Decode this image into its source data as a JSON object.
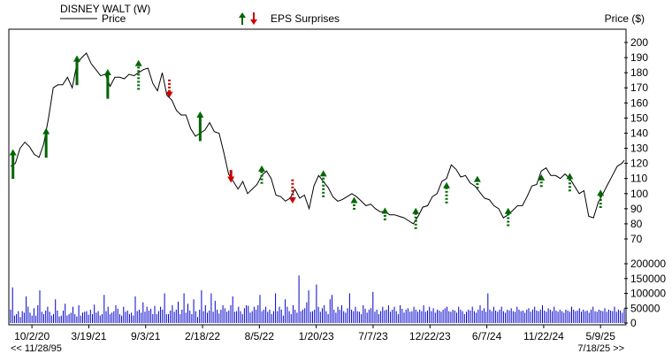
{
  "legend": {
    "title": "DISNEY WALT (W)",
    "price_label": "Price",
    "eps_label": "EPS Surprises",
    "price_axis_label": "Price ($)"
  },
  "colors": {
    "price_line": "#000000",
    "volume": "#0000cc",
    "surprise_up": "#006600",
    "surprise_down": "#cc0000"
  },
  "chart_data": [
    {
      "type": "line",
      "name": "price",
      "x": [
        "2020-07-31",
        "2020-08-14",
        "2020-08-28",
        "2020-09-11",
        "2020-09-25",
        "2020-10-09",
        "2020-10-23",
        "2020-11-06",
        "2020-11-20",
        "2020-12-04",
        "2020-12-18",
        "2021-01-01",
        "2021-01-15",
        "2021-01-29",
        "2021-02-12",
        "2021-02-26",
        "2021-03-12",
        "2021-03-26",
        "2021-04-09",
        "2021-04-23",
        "2021-05-07",
        "2021-05-21",
        "2021-06-04",
        "2021-06-18",
        "2021-07-02",
        "2021-07-16",
        "2021-07-30",
        "2021-08-13",
        "2021-08-27",
        "2021-09-10",
        "2021-09-24",
        "2021-10-08",
        "2021-10-22",
        "2021-11-05",
        "2021-11-19",
        "2021-12-03",
        "2021-12-17",
        "2021-12-31",
        "2022-01-14",
        "2022-01-28",
        "2022-02-11",
        "2022-02-25",
        "2022-03-11",
        "2022-03-25",
        "2022-04-08",
        "2022-04-22",
        "2022-05-06",
        "2022-05-20",
        "2022-06-03",
        "2022-06-17",
        "2022-07-01",
        "2022-07-15",
        "2022-07-29",
        "2022-08-12",
        "2022-08-26",
        "2022-09-09",
        "2022-09-23",
        "2022-10-07",
        "2022-10-21",
        "2022-11-04",
        "2022-11-18",
        "2022-12-02",
        "2022-12-16",
        "2022-12-30",
        "2023-01-13",
        "2023-01-27",
        "2023-02-10",
        "2023-02-24",
        "2023-03-10",
        "2023-03-24",
        "2023-04-07",
        "2023-04-21",
        "2023-05-05",
        "2023-05-19",
        "2023-06-02",
        "2023-06-16",
        "2023-06-30",
        "2023-07-14",
        "2023-07-28",
        "2023-08-11",
        "2023-08-25",
        "2023-09-08",
        "2023-09-22",
        "2023-10-06",
        "2023-10-20",
        "2023-11-03",
        "2023-11-17",
        "2023-12-01",
        "2023-12-15",
        "2023-12-29",
        "2024-01-12",
        "2024-01-26",
        "2024-02-09",
        "2024-02-23",
        "2024-03-08",
        "2024-03-22",
        "2024-04-05",
        "2024-04-19",
        "2024-05-03",
        "2024-05-17",
        "2024-05-31",
        "2024-06-14",
        "2024-06-28",
        "2024-07-12",
        "2024-07-26",
        "2024-08-09",
        "2024-08-23",
        "2024-09-06",
        "2024-09-20",
        "2024-10-04",
        "2024-10-18",
        "2024-11-01",
        "2024-11-15",
        "2024-11-29",
        "2024-12-13",
        "2024-12-27",
        "2025-01-10",
        "2025-01-24",
        "2025-02-07",
        "2025-02-21",
        "2025-03-07",
        "2025-03-21",
        "2025-04-04",
        "2025-04-18",
        "2025-05-02",
        "2025-05-16",
        "2025-05-30",
        "2025-06-13",
        "2025-06-27",
        "2025-07-11",
        "2025-07-18"
      ],
      "y": [
        118,
        120,
        130,
        134,
        131,
        126,
        124,
        133,
        150,
        170,
        172,
        172,
        177,
        170,
        186,
        190,
        193,
        186,
        182,
        178,
        179,
        171,
        177,
        177,
        176,
        179,
        178,
        180,
        182,
        183,
        173,
        168,
        180,
        165,
        162,
        155,
        152,
        152,
        143,
        138,
        140,
        142,
        147,
        141,
        140,
        127,
        113,
        108,
        103,
        108,
        100,
        103,
        106,
        112,
        115,
        110,
        99,
        98,
        95,
        97,
        103,
        97,
        99,
        90,
        105,
        112,
        108,
        104,
        98,
        95,
        96,
        98,
        100,
        98,
        95,
        92,
        93,
        90,
        88,
        88,
        86,
        86,
        85,
        84,
        82,
        80,
        85,
        91,
        92,
        98,
        100,
        108,
        110,
        119,
        116,
        111,
        112,
        107,
        105,
        101,
        97,
        96,
        92,
        90,
        84,
        86,
        89,
        92,
        92,
        98,
        105,
        106,
        115,
        117,
        112,
        112,
        110,
        113,
        110,
        105,
        100,
        102,
        85,
        84,
        94,
        100,
        106,
        112,
        118,
        120,
        122
      ],
      "ylabel": "Price ($)",
      "ylim": [
        65,
        205
      ],
      "yticks": [
        70,
        80,
        90,
        100,
        110,
        120,
        130,
        140,
        150,
        160,
        170,
        180,
        190,
        200
      ],
      "xtick_labels": [
        "10/2/20",
        "3/19/21",
        "9/3/21",
        "2/18/22",
        "8/5/22",
        "1/20/23",
        "7/7/23",
        "12/22/23",
        "6/7/24",
        "11/22/24",
        "5/9/25"
      ],
      "xtick_dates": [
        "2020-10-02",
        "2021-03-19",
        "2021-09-03",
        "2022-02-18",
        "2022-08-05",
        "2023-01-20",
        "2023-07-07",
        "2023-12-22",
        "2024-06-07",
        "2024-11-22",
        "2025-05-09"
      ],
      "range_start": "<< 11/28/95",
      "range_end": "7/18/25 >>"
    },
    {
      "type": "scatter",
      "name": "eps_surprises",
      "points": [
        {
          "date": "2020-08-07",
          "price": 119,
          "magnitude": 16,
          "direction": "up",
          "style": "solid"
        },
        {
          "date": "2020-11-13",
          "price": 133,
          "magnitude": 16,
          "direction": "up",
          "style": "solid"
        },
        {
          "date": "2021-02-12",
          "price": 181,
          "magnitude": 16,
          "direction": "up",
          "style": "solid"
        },
        {
          "date": "2021-05-14",
          "price": 172,
          "magnitude": 16,
          "direction": "up",
          "style": "solid"
        },
        {
          "date": "2021-08-13",
          "price": 178,
          "magnitude": 16,
          "direction": "up",
          "style": "dashed"
        },
        {
          "date": "2021-11-12",
          "price": 170,
          "magnitude": 8,
          "direction": "down",
          "style": "dashed"
        },
        {
          "date": "2022-02-11",
          "price": 144,
          "magnitude": 16,
          "direction": "up",
          "style": "solid"
        },
        {
          "date": "2022-05-13",
          "price": 112,
          "magnitude": 4,
          "direction": "down",
          "style": "solid"
        },
        {
          "date": "2022-08-12",
          "price": 112,
          "magnitude": 8,
          "direction": "up",
          "style": "dashed"
        },
        {
          "date": "2022-11-11",
          "price": 102,
          "magnitude": 12,
          "direction": "down",
          "style": "dashed"
        },
        {
          "date": "2023-02-10",
          "price": 106,
          "magnitude": 14,
          "direction": "up",
          "style": "dashed"
        },
        {
          "date": "2023-05-12",
          "price": 93,
          "magnitude": 4,
          "direction": "up",
          "style": "dashed"
        },
        {
          "date": "2023-08-11",
          "price": 86,
          "magnitude": 4,
          "direction": "up",
          "style": "dashed"
        },
        {
          "date": "2023-11-10",
          "price": 83,
          "magnitude": 10,
          "direction": "up",
          "style": "dashed"
        },
        {
          "date": "2024-02-09",
          "price": 100,
          "magnitude": 10,
          "direction": "up",
          "style": "dashed"
        },
        {
          "date": "2024-05-10",
          "price": 107,
          "magnitude": 4,
          "direction": "up",
          "style": "dashed"
        },
        {
          "date": "2024-08-09",
          "price": 84,
          "magnitude": 8,
          "direction": "up",
          "style": "dashed"
        },
        {
          "date": "2024-11-15",
          "price": 108,
          "magnitude": 4,
          "direction": "up",
          "style": "dashed"
        },
        {
          "date": "2025-02-07",
          "price": 107,
          "magnitude": 8,
          "direction": "up",
          "style": "dashed"
        },
        {
          "date": "2025-05-09",
          "price": 96,
          "magnitude": 8,
          "direction": "up",
          "style": "dashed"
        }
      ]
    },
    {
      "type": "bar",
      "name": "volume",
      "ylim": [
        0,
        200000
      ],
      "yticks": [
        0,
        50000,
        100000,
        150000,
        200000
      ],
      "values": [
        45000,
        120000,
        25000,
        30000,
        40000,
        20000,
        40000,
        35000,
        90000,
        55000,
        35000,
        25000,
        50000,
        25000,
        60000,
        110000,
        38000,
        30000,
        42000,
        55000,
        38000,
        25000,
        30000,
        80000,
        42000,
        22000,
        25000,
        42000,
        65000,
        25000,
        30000,
        35000,
        55000,
        30000,
        22000,
        60000,
        25000,
        35000,
        38000,
        40000,
        28000,
        45000,
        30000,
        62000,
        35000,
        40000,
        25000,
        30000,
        95000,
        40000,
        55000,
        30000,
        35000,
        40000,
        60000,
        48000,
        30000,
        25000,
        55000,
        38000,
        42000,
        30000,
        35000,
        25000,
        90000,
        40000,
        45000,
        35000,
        70000,
        38000,
        55000,
        42000,
        48000,
        30000,
        58000,
        30000,
        40000,
        55000,
        45000,
        100000,
        30000,
        30000,
        42000,
        60000,
        38000,
        45000,
        72000,
        30000,
        45000,
        100000,
        35000,
        65000,
        42000,
        30000,
        80000,
        40000,
        20000,
        45000,
        110000,
        40000,
        60000,
        35000,
        42000,
        100000,
        38000,
        75000,
        45000,
        32000,
        45000,
        60000,
        50000,
        38000,
        42000,
        60000,
        90000,
        38000,
        40000,
        55000,
        40000,
        30000,
        50000,
        60000,
        58000,
        35000,
        40000,
        55000,
        45000,
        60000,
        95000,
        40000,
        45000,
        55000,
        38000,
        45000,
        30000,
        40000,
        100000,
        40000,
        55000,
        45000,
        25000,
        80000,
        55000,
        40000,
        30000,
        60000,
        45000,
        35000,
        160000,
        40000,
        45000,
        50000,
        70000,
        110000,
        38000,
        40000,
        45000,
        130000,
        55000,
        38000,
        50000,
        60000,
        40000,
        30000,
        80000,
        95000,
        45000,
        35000,
        55000,
        45000,
        60000,
        40000,
        35000,
        50000,
        100000,
        45000,
        40000,
        55000,
        40000,
        38000,
        30000,
        60000,
        48000,
        35000,
        45000,
        50000,
        105000,
        38000,
        45000,
        30000,
        40000,
        55000,
        42000,
        45000,
        60000,
        38000,
        45000,
        55000,
        40000,
        30000,
        60000,
        48000,
        35000,
        45000,
        50000,
        38000,
        40000,
        55000,
        45000,
        38000,
        45000,
        40000,
        60000,
        38000,
        42000,
        55000,
        40000,
        50000,
        35000,
        45000,
        42000,
        38000,
        45000,
        50000,
        55000,
        40000,
        38000,
        45000,
        42000,
        35000,
        55000,
        45000,
        40000,
        30000,
        38000,
        45000,
        42000,
        55000,
        40000,
        35000,
        45000,
        60000,
        42000,
        50000,
        38000,
        100000,
        45000,
        40000,
        55000,
        42000,
        38000,
        45000,
        55000,
        40000,
        35000,
        45000,
        42000,
        50000,
        40000,
        38000,
        55000,
        45000,
        40000,
        42000,
        35000,
        45000,
        50000,
        38000,
        45000,
        55000,
        42000,
        40000,
        45000,
        60000,
        42000,
        38000,
        50000,
        45000,
        40000,
        55000,
        42000,
        38000,
        45000,
        40000,
        35000,
        45000,
        42000,
        38000,
        55000,
        45000,
        40000,
        42000,
        50000,
        38000,
        45000,
        40000,
        42000,
        35000,
        45000,
        55000,
        40000,
        38000,
        45000,
        42000,
        40000,
        50000,
        38000,
        45000,
        42000,
        40000,
        55000,
        38000,
        45000,
        42000,
        35000,
        48000
      ]
    }
  ]
}
